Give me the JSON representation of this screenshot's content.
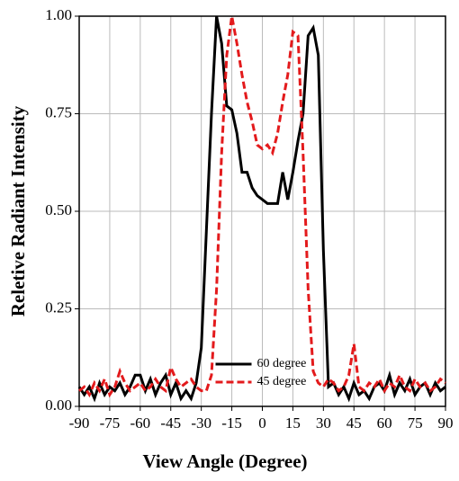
{
  "chart_data": {
    "type": "line",
    "xlabel": "View Angle (Degree)",
    "ylabel": "Reletive Radiant Intensity",
    "x": [
      -90,
      -87.5,
      -85,
      -82.5,
      -80,
      -77.5,
      -75,
      -72.5,
      -70,
      -67.5,
      -65,
      -62.5,
      -60,
      -57.5,
      -55,
      -52.5,
      -50,
      -47.5,
      -45,
      -42.5,
      -40,
      -37.5,
      -35,
      -32.5,
      -30,
      -27.5,
      -25,
      -22.5,
      -20,
      -17.5,
      -15,
      -12.5,
      -10,
      -7.5,
      -5,
      -2.5,
      0,
      2.5,
      5,
      7.5,
      10,
      12.5,
      15,
      17.5,
      20,
      22.5,
      25,
      27.5,
      30,
      32.5,
      35,
      37.5,
      40,
      42.5,
      45,
      47.5,
      50,
      52.5,
      55,
      57.5,
      60,
      62.5,
      65,
      67.5,
      70,
      72.5,
      75,
      77.5,
      80,
      82.5,
      85,
      87.5,
      90
    ],
    "series": [
      {
        "name": "60 degree",
        "color": "#000000",
        "dash": "solid",
        "values": [
          0.05,
          0.03,
          0.05,
          0.02,
          0.06,
          0.03,
          0.05,
          0.04,
          0.06,
          0.03,
          0.05,
          0.08,
          0.08,
          0.04,
          0.07,
          0.03,
          0.06,
          0.08,
          0.03,
          0.06,
          0.02,
          0.04,
          0.02,
          0.06,
          0.15,
          0.45,
          0.75,
          1.0,
          0.93,
          0.77,
          0.76,
          0.7,
          0.6,
          0.6,
          0.56,
          0.54,
          0.53,
          0.52,
          0.52,
          0.52,
          0.6,
          0.53,
          0.6,
          0.68,
          0.75,
          0.95,
          0.97,
          0.9,
          0.4,
          0.05,
          0.06,
          0.03,
          0.05,
          0.02,
          0.06,
          0.03,
          0.04,
          0.02,
          0.05,
          0.06,
          0.04,
          0.08,
          0.03,
          0.06,
          0.04,
          0.07,
          0.03,
          0.05,
          0.06,
          0.03,
          0.06,
          0.04,
          0.05
        ]
      },
      {
        "name": "45 degree",
        "color": "#e31a1c",
        "dash": "dashed",
        "values": [
          0.04,
          0.05,
          0.03,
          0.06,
          0.04,
          0.07,
          0.03,
          0.05,
          0.09,
          0.06,
          0.04,
          0.05,
          0.06,
          0.04,
          0.05,
          0.07,
          0.05,
          0.04,
          0.1,
          0.07,
          0.05,
          0.06,
          0.07,
          0.05,
          0.04,
          0.04,
          0.08,
          0.3,
          0.65,
          0.9,
          1.0,
          0.93,
          0.85,
          0.78,
          0.73,
          0.67,
          0.66,
          0.67,
          0.65,
          0.7,
          0.78,
          0.85,
          0.96,
          0.95,
          0.65,
          0.3,
          0.09,
          0.06,
          0.05,
          0.07,
          0.06,
          0.04,
          0.05,
          0.08,
          0.16,
          0.05,
          0.04,
          0.06,
          0.05,
          0.07,
          0.04,
          0.06,
          0.05,
          0.08,
          0.05,
          0.04,
          0.07,
          0.05,
          0.06,
          0.04,
          0.05,
          0.07,
          0.06
        ]
      }
    ],
    "xlim": [
      -90,
      90
    ],
    "ylim": [
      0,
      1
    ],
    "xticks": [
      -90,
      -75,
      -60,
      -45,
      -30,
      -15,
      0,
      15,
      30,
      45,
      60,
      75,
      90
    ],
    "yticks": [
      {
        "value": 0,
        "label": "0.00"
      },
      {
        "value": 0.25,
        "label": "0.25"
      },
      {
        "value": 0.5,
        "label": "0.50"
      },
      {
        "value": 0.75,
        "label": "0.75"
      },
      {
        "value": 1,
        "label": "1.00"
      }
    ],
    "grid": true,
    "legend": "lower center"
  }
}
